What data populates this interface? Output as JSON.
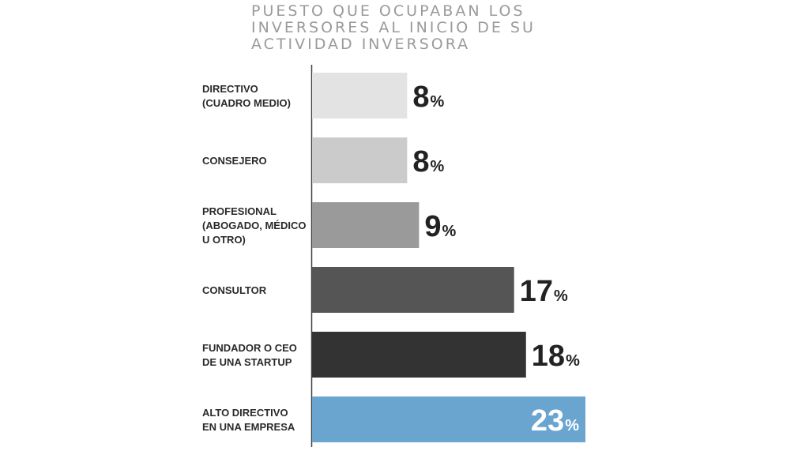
{
  "chart_data": {
    "type": "bar",
    "orientation": "horizontal",
    "title": "PUESTO QUE OCUPABAN LOS INVERSORES AL INICIO DE SU ACTIVIDAD INVERSORA",
    "title_lines": [
      "PUESTO QUE OCUPABAN LOS",
      "INVERSORES AL INICIO DE SU",
      "ACTIVIDAD INVERSORA"
    ],
    "unit": "%",
    "categories": [
      [
        "DIRECTIVO",
        "(CUADRO MEDIO)"
      ],
      [
        "CONSEJERO"
      ],
      [
        "PROFESIONAL",
        "(ABOGADO, MÉDICO",
        "U OTRO)"
      ],
      [
        "CONSULTOR"
      ],
      [
        "FUNDADOR O CEO",
        "DE UNA STARTUP"
      ],
      [
        "ALTO DIRECTIVO",
        "EN UNA EMPRESA"
      ]
    ],
    "values": [
      8,
      8,
      9,
      17,
      18,
      23
    ],
    "bar_colors": [
      "#e3e3e3",
      "#cbcbcb",
      "#9a9a9a",
      "#555555",
      "#333333",
      "#6aa5d0"
    ],
    "value_label_colors": [
      "#222222",
      "#222222",
      "#222222",
      "#222222",
      "#222222",
      "#ffffff"
    ],
    "value_label_inside": [
      false,
      false,
      false,
      false,
      false,
      true
    ],
    "xlim": [
      0,
      23
    ],
    "grid": false,
    "legend": "none"
  }
}
